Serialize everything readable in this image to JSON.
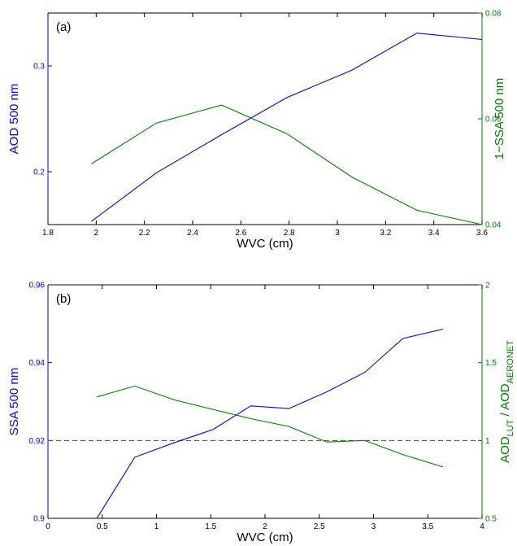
{
  "colors": {
    "left_axis": "#0000ff",
    "right_axis": "#007f00",
    "reference": "#ff0000",
    "frame": "#000000"
  },
  "chart_data": [
    {
      "type": "line",
      "panel_label": "(a)",
      "xlabel": "WVC (cm)",
      "ylabel_left": "AOD 500 nm",
      "ylabel_right": "1−SSA 500 nm",
      "xlim": [
        1.8,
        3.6
      ],
      "ylim_left": [
        0.15,
        0.35
      ],
      "ylim_right": [
        0.04,
        0.08
      ],
      "xticks": [
        "1.8",
        "2",
        "2.2",
        "2.4",
        "2.6",
        "2.8",
        "3",
        "3.2",
        "3.4",
        "3.6"
      ],
      "xtick_values": [
        1.8,
        2.0,
        2.2,
        2.4,
        2.6,
        2.8,
        3.0,
        3.2,
        3.4,
        3.6
      ],
      "yticks_left": [
        "0.2",
        "0.3"
      ],
      "ytick_values_left": [
        0.2,
        0.3
      ],
      "yticks_right": [
        "0.04",
        "0.06",
        "0.08"
      ],
      "ytick_values_right": [
        0.04,
        0.06,
        0.08
      ],
      "series": [
        {
          "axis": "left",
          "color": "#0000ff",
          "x": [
            1.98,
            2.25,
            2.52,
            2.79,
            3.06,
            3.33,
            3.6
          ],
          "y": [
            0.153,
            0.199,
            0.235,
            0.27,
            0.296,
            0.331,
            0.325
          ]
        },
        {
          "axis": "right",
          "color": "#007f00",
          "x": [
            1.98,
            2.25,
            2.52,
            2.79,
            3.06,
            3.33,
            3.6
          ],
          "y": [
            0.0515,
            0.0592,
            0.0626,
            0.0572,
            0.049,
            0.0427,
            0.04
          ]
        }
      ],
      "grid": false
    },
    {
      "type": "line",
      "panel_label": "(b)",
      "xlabel": "WVC (cm)",
      "ylabel_left": "SSA 500 nm",
      "ylabel_right_main": "AOD",
      "ylabel_right_sub1": "LUT",
      "ylabel_right_mid": " / AOD",
      "ylabel_right_sub2": "AERONET",
      "xlim": [
        0,
        4
      ],
      "ylim_left": [
        0.9,
        0.96
      ],
      "ylim_right": [
        0.5,
        2
      ],
      "xticks": [
        "0",
        "0.5",
        "1",
        "1.5",
        "2",
        "2.5",
        "3",
        "3.5",
        "4"
      ],
      "xtick_values": [
        0,
        0.5,
        1,
        1.5,
        2,
        2.5,
        3,
        3.5,
        4
      ],
      "yticks_left": [
        "0.9",
        "0.92",
        "0.94",
        "0.96"
      ],
      "ytick_values_left": [
        0.9,
        0.92,
        0.94,
        0.96
      ],
      "yticks_right": [
        "0.5",
        "1",
        "1.5",
        "2"
      ],
      "ytick_values_right": [
        0.5,
        1,
        1.5,
        2
      ],
      "reference_line": {
        "axis": "right",
        "y": 1,
        "style": "dashed",
        "color": "#ff0000"
      },
      "series": [
        {
          "axis": "left",
          "color": "#0000ff",
          "x": [
            0.45,
            0.8,
            1.17,
            1.52,
            1.87,
            2.22,
            2.57,
            2.92,
            3.27,
            3.64
          ],
          "y": [
            0.9,
            0.9157,
            0.9195,
            0.9228,
            0.9289,
            0.9282,
            0.9325,
            0.9375,
            0.9462,
            0.9486
          ]
        },
        {
          "axis": "right",
          "color": "#007f00",
          "x": [
            0.45,
            0.8,
            1.17,
            1.52,
            1.87,
            2.22,
            2.57,
            2.92,
            3.27,
            3.64
          ],
          "y": [
            1.28,
            1.35,
            1.26,
            1.2,
            1.14,
            1.09,
            0.99,
            1.0,
            0.91,
            0.83
          ]
        }
      ],
      "grid": false
    }
  ]
}
